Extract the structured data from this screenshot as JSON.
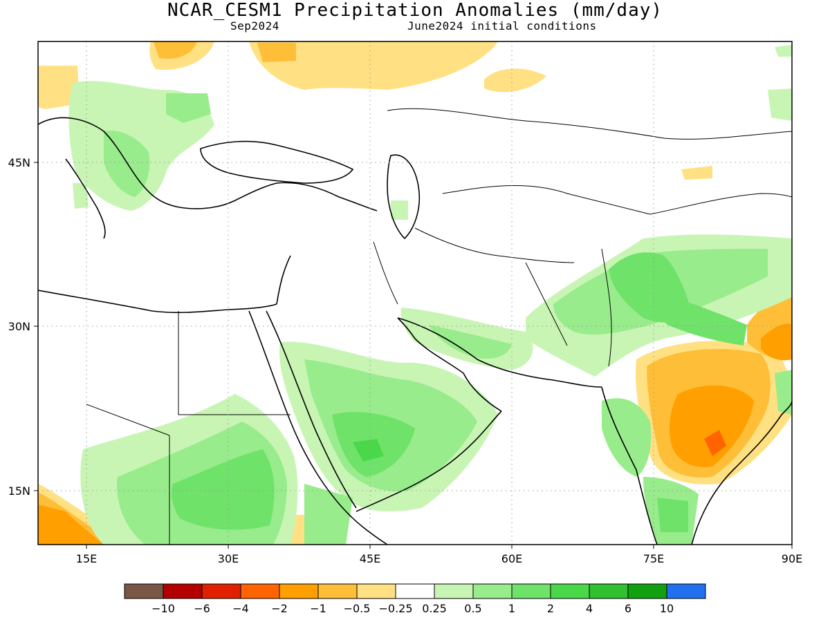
{
  "header": {
    "title": "NCAR_CESM1 Precipitation Anomalies (mm/day)",
    "valid_month": "Sep2024",
    "init_conditions": "June2024 initial conditions"
  },
  "axes": {
    "lon_ticks": [
      "15E",
      "30E",
      "45E",
      "60E",
      "75E",
      "90E"
    ],
    "lat_ticks": [
      "45N",
      "30N",
      "15N"
    ],
    "gridlines": "dotted"
  },
  "colorbar": {
    "colors": [
      "#7a5646",
      "#b40000",
      "#e02000",
      "#ff6400",
      "#ff9f00",
      "#ffbe38",
      "#ffe082",
      "#ffffff",
      "#c8f5b4",
      "#98ec8c",
      "#6fe26a",
      "#4ad84a",
      "#30c030",
      "#10a010",
      "#2070f0"
    ],
    "labels": [
      "-10",
      "-6",
      "-4",
      "-2",
      "-1",
      "-0.5",
      "-0.25",
      "0.25",
      "0.5",
      "1",
      "2",
      "4",
      "6",
      "10"
    ]
  }
}
